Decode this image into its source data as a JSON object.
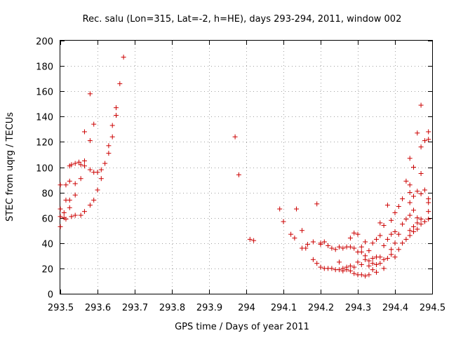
{
  "chart_data": {
    "type": "scatter",
    "title": "Rec. salu (Lon=315, Lat=-2, h=HE), days 293-294, 2011, window 002",
    "xlabel": "GPS time / Days of year 2011",
    "ylabel": "STEC from uqrg / TECUs",
    "xlim": [
      293.5,
      294.5
    ],
    "ylim": [
      0,
      200
    ],
    "xticks": [
      293.5,
      293.6,
      293.7,
      293.8,
      293.9,
      294.0,
      294.1,
      294.2,
      294.3,
      294.4,
      294.5
    ],
    "xtick_labels": [
      "293.5",
      "293.6",
      "293.7",
      "293.8",
      "293.9",
      "294",
      "294.1",
      "294.2",
      "294.3",
      "294.4",
      "294.5"
    ],
    "yticks": [
      0,
      20,
      40,
      60,
      80,
      100,
      120,
      140,
      160,
      180,
      200
    ],
    "ytick_labels": [
      "0",
      "20",
      "40",
      "60",
      "80",
      "100",
      "120",
      "140",
      "160",
      "180",
      "200"
    ],
    "grid": true,
    "marker": "plus",
    "color": "#cc0000",
    "points": [
      [
        293.5,
        53
      ],
      [
        293.5,
        61
      ],
      [
        293.5,
        67
      ],
      [
        293.5,
        86
      ],
      [
        293.51,
        60
      ],
      [
        293.51,
        64
      ],
      [
        293.515,
        59
      ],
      [
        293.515,
        74
      ],
      [
        293.515,
        86
      ],
      [
        293.525,
        68
      ],
      [
        293.525,
        74
      ],
      [
        293.525,
        89
      ],
      [
        293.525,
        101
      ],
      [
        293.53,
        61
      ],
      [
        293.53,
        102
      ],
      [
        293.54,
        62
      ],
      [
        293.54,
        78
      ],
      [
        293.54,
        87
      ],
      [
        293.54,
        103
      ],
      [
        293.55,
        104
      ],
      [
        293.555,
        62
      ],
      [
        293.555,
        91
      ],
      [
        293.555,
        102
      ],
      [
        293.565,
        65
      ],
      [
        293.565,
        101
      ],
      [
        293.565,
        105
      ],
      [
        293.565,
        128
      ],
      [
        293.58,
        70
      ],
      [
        293.58,
        98
      ],
      [
        293.58,
        121
      ],
      [
        293.58,
        158
      ],
      [
        293.59,
        74
      ],
      [
        293.59,
        96
      ],
      [
        293.59,
        134
      ],
      [
        293.6,
        82
      ],
      [
        293.6,
        96
      ],
      [
        293.61,
        91
      ],
      [
        293.61,
        98
      ],
      [
        293.62,
        103
      ],
      [
        293.63,
        111
      ],
      [
        293.63,
        117
      ],
      [
        293.64,
        124
      ],
      [
        293.64,
        133
      ],
      [
        293.65,
        141
      ],
      [
        293.65,
        147
      ],
      [
        293.66,
        166
      ],
      [
        293.67,
        187
      ],
      [
        293.97,
        124
      ],
      [
        293.98,
        94
      ],
      [
        294.01,
        43
      ],
      [
        294.02,
        42
      ],
      [
        294.09,
        67
      ],
      [
        294.1,
        57
      ],
      [
        294.12,
        47
      ],
      [
        294.13,
        44
      ],
      [
        294.135,
        67
      ],
      [
        294.15,
        36
      ],
      [
        294.15,
        50
      ],
      [
        294.16,
        36
      ],
      [
        294.165,
        39
      ],
      [
        294.18,
        27
      ],
      [
        294.18,
        41
      ],
      [
        294.19,
        24
      ],
      [
        294.19,
        71
      ],
      [
        294.2,
        21
      ],
      [
        294.2,
        39
      ],
      [
        294.2,
        40
      ],
      [
        294.21,
        20
      ],
      [
        294.21,
        41
      ],
      [
        294.22,
        20
      ],
      [
        294.22,
        38
      ],
      [
        294.23,
        20
      ],
      [
        294.23,
        36
      ],
      [
        294.24,
        19
      ],
      [
        294.24,
        35
      ],
      [
        294.25,
        19
      ],
      [
        294.25,
        25
      ],
      [
        294.25,
        37
      ],
      [
        294.26,
        18
      ],
      [
        294.26,
        20
      ],
      [
        294.26,
        36
      ],
      [
        294.27,
        19
      ],
      [
        294.27,
        21
      ],
      [
        294.27,
        37
      ],
      [
        294.28,
        18
      ],
      [
        294.28,
        22
      ],
      [
        294.28,
        37
      ],
      [
        294.28,
        44
      ],
      [
        294.29,
        16
      ],
      [
        294.29,
        21
      ],
      [
        294.29,
        36
      ],
      [
        294.29,
        48
      ],
      [
        294.3,
        15
      ],
      [
        294.3,
        25
      ],
      [
        294.3,
        33
      ],
      [
        294.3,
        47
      ],
      [
        294.31,
        15
      ],
      [
        294.31,
        23
      ],
      [
        294.31,
        33
      ],
      [
        294.31,
        37
      ],
      [
        294.32,
        14
      ],
      [
        294.32,
        27
      ],
      [
        294.32,
        30
      ],
      [
        294.32,
        41
      ],
      [
        294.33,
        15
      ],
      [
        294.33,
        22
      ],
      [
        294.33,
        26
      ],
      [
        294.33,
        34
      ],
      [
        294.34,
        19
      ],
      [
        294.34,
        24
      ],
      [
        294.34,
        28
      ],
      [
        294.34,
        40
      ],
      [
        294.35,
        17
      ],
      [
        294.35,
        23
      ],
      [
        294.35,
        29
      ],
      [
        294.35,
        43
      ],
      [
        294.36,
        24
      ],
      [
        294.36,
        29
      ],
      [
        294.36,
        46
      ],
      [
        294.36,
        56
      ],
      [
        294.37,
        20
      ],
      [
        294.37,
        27
      ],
      [
        294.37,
        38
      ],
      [
        294.37,
        54
      ],
      [
        294.38,
        28
      ],
      [
        294.38,
        43
      ],
      [
        294.38,
        70
      ],
      [
        294.39,
        31
      ],
      [
        294.39,
        35
      ],
      [
        294.39,
        47
      ],
      [
        294.39,
        58
      ],
      [
        294.4,
        29
      ],
      [
        294.4,
        40
      ],
      [
        294.4,
        49
      ],
      [
        294.4,
        64
      ],
      [
        294.41,
        35
      ],
      [
        294.41,
        47
      ],
      [
        294.41,
        69
      ],
      [
        294.42,
        40
      ],
      [
        294.42,
        55
      ],
      [
        294.42,
        75
      ],
      [
        294.43,
        43
      ],
      [
        294.43,
        59
      ],
      [
        294.43,
        89
      ],
      [
        294.44,
        46
      ],
      [
        294.44,
        50
      ],
      [
        294.44,
        62
      ],
      [
        294.44,
        72
      ],
      [
        294.44,
        80
      ],
      [
        294.44,
        86
      ],
      [
        294.44,
        107
      ],
      [
        294.45,
        49
      ],
      [
        294.45,
        53
      ],
      [
        294.45,
        66
      ],
      [
        294.45,
        77
      ],
      [
        294.45,
        100
      ],
      [
        294.46,
        51
      ],
      [
        294.46,
        56
      ],
      [
        294.46,
        60
      ],
      [
        294.46,
        81
      ],
      [
        294.46,
        127
      ],
      [
        294.47,
        55
      ],
      [
        294.47,
        59
      ],
      [
        294.47,
        79
      ],
      [
        294.47,
        95
      ],
      [
        294.47,
        116
      ],
      [
        294.47,
        149
      ],
      [
        294.48,
        57
      ],
      [
        294.48,
        82
      ],
      [
        294.48,
        121
      ],
      [
        294.49,
        59
      ],
      [
        294.49,
        65
      ],
      [
        294.49,
        72
      ],
      [
        294.49,
        75
      ],
      [
        294.49,
        122
      ],
      [
        294.49,
        128
      ]
    ]
  }
}
